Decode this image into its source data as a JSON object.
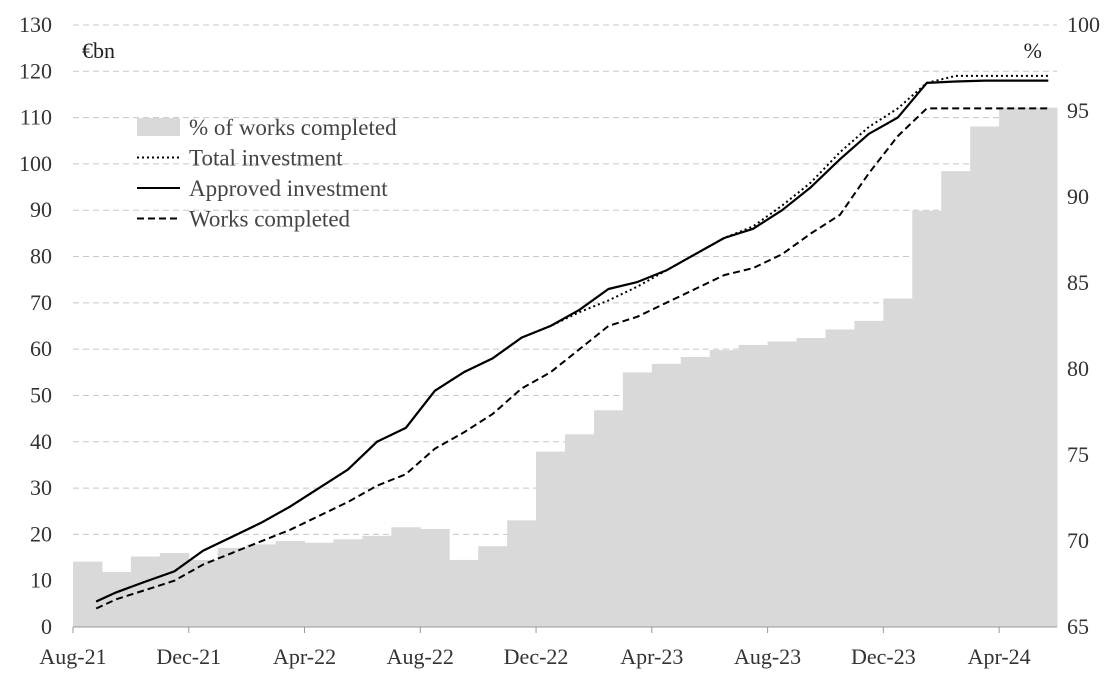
{
  "chart_data": {
    "type": "bar+line",
    "left_axis": {
      "unit_label": "€bn",
      "ylim": [
        0,
        130
      ],
      "ticks": [
        0,
        10,
        20,
        30,
        40,
        50,
        60,
        70,
        80,
        90,
        100,
        110,
        120,
        130
      ],
      "tick_labels": [
        "0",
        "10",
        "20",
        "30",
        "40",
        "50",
        "60",
        "70",
        "80",
        "90",
        "100",
        "110",
        "120",
        "130"
      ]
    },
    "right_axis": {
      "unit_label": "%",
      "ylim": [
        65,
        100
      ],
      "ticks": [
        65,
        70,
        75,
        80,
        85,
        90,
        95,
        100
      ],
      "tick_labels": [
        "65",
        "70",
        "75",
        "80",
        "85",
        "90",
        "95",
        "100"
      ]
    },
    "x_tick_labels": [
      "Aug-21",
      "Dec-21",
      "Apr-22",
      "Aug-22",
      "Dec-22",
      "Apr-23",
      "Aug-23",
      "Dec-23",
      "Apr-24"
    ],
    "x_tick_index": [
      0,
      4,
      8,
      12,
      16,
      20,
      24,
      28,
      32
    ],
    "months": [
      "Aug-21",
      "Sep-21",
      "Oct-21",
      "Nov-21",
      "Dec-21",
      "Jan-22",
      "Feb-22",
      "Mar-22",
      "Apr-22",
      "May-22",
      "Jun-22",
      "Jul-22",
      "Aug-22",
      "Sep-22",
      "Oct-22",
      "Nov-22",
      "Dec-22",
      "Jan-23",
      "Feb-23",
      "Mar-23",
      "Apr-23",
      "May-23",
      "Jun-23",
      "Jul-23",
      "Aug-23",
      "Sep-23",
      "Oct-23",
      "Nov-23",
      "Dec-23",
      "Jan-24",
      "Feb-24",
      "Mar-24",
      "Apr-24",
      "May-24"
    ],
    "grid": "horizontal dashed",
    "legend_position": "top-left",
    "legend": [
      {
        "label": "% of works completed",
        "style": "bar",
        "color": "#d9d9d9"
      },
      {
        "label": "Total investment",
        "style": "dotted",
        "color": "#000000"
      },
      {
        "label": "Approved investment",
        "style": "solid",
        "color": "#000000"
      },
      {
        "label": "Works completed",
        "style": "dashed",
        "color": "#000000"
      }
    ],
    "bar_series": {
      "name": "% of works completed",
      "axis": "right",
      "color": "#d9d9d9",
      "values": [
        68.8,
        68.2,
        69.1,
        69.3,
        68.9,
        69.6,
        69.8,
        70.0,
        69.9,
        70.1,
        70.3,
        70.8,
        70.7,
        68.9,
        69.7,
        71.2,
        75.2,
        76.2,
        77.6,
        79.8,
        80.3,
        80.7,
        81.1,
        81.4,
        81.6,
        81.8,
        82.3,
        82.8,
        84.1,
        89.2,
        91.5,
        94.1,
        95.2,
        95.2
      ]
    },
    "line_series": [
      {
        "name": "Total investment",
        "axis": "left",
        "style": "dotted",
        "x": [
          0.3,
          1,
          2,
          3,
          4,
          5,
          6,
          7,
          8,
          9,
          10,
          11,
          12,
          13,
          14,
          15,
          16,
          17,
          18,
          19,
          20,
          21,
          22,
          23,
          24,
          25,
          26,
          27,
          28,
          29,
          30,
          31,
          32,
          33.2
        ],
        "values": [
          5.5,
          7.5,
          9.8,
          12,
          16.5,
          19.5,
          22.5,
          26,
          30,
          34,
          40,
          43,
          51,
          55,
          58,
          62.5,
          65,
          68,
          70.5,
          73.5,
          77,
          80.5,
          84,
          86.5,
          91,
          96,
          102.5,
          108,
          112,
          117.5,
          119,
          119,
          119,
          119
        ]
      },
      {
        "name": "Approved investment",
        "axis": "left",
        "style": "solid",
        "x": [
          0.3,
          1,
          2,
          3,
          4,
          5,
          6,
          7,
          8,
          9,
          10,
          11,
          12,
          13,
          14,
          15,
          16,
          17,
          18,
          19,
          20,
          21,
          22,
          23,
          24,
          25,
          26,
          27,
          28,
          29,
          30,
          31,
          32,
          33.2
        ],
        "values": [
          5.5,
          7.5,
          9.8,
          12,
          16.5,
          19.5,
          22.5,
          26,
          30,
          34,
          40,
          43,
          51,
          55,
          58,
          62.5,
          65,
          68.5,
          73,
          74.5,
          77,
          80.5,
          84,
          86,
          90,
          95,
          101,
          106.5,
          110,
          117.5,
          117.8,
          118,
          118,
          118
        ]
      },
      {
        "name": "Works completed",
        "axis": "left",
        "style": "dashed",
        "x": [
          0.3,
          1,
          2,
          3,
          4,
          5,
          6,
          7,
          8,
          9,
          10,
          11,
          12,
          13,
          14,
          15,
          16,
          17,
          18,
          19,
          20,
          21,
          22,
          23,
          24,
          25,
          26,
          27,
          28,
          29,
          30,
          31,
          32,
          33.2
        ],
        "values": [
          4,
          6,
          8,
          10,
          13.5,
          16,
          18.5,
          21,
          24,
          27,
          30.5,
          33,
          38.5,
          42,
          46,
          51.5,
          55,
          60,
          65,
          67,
          70,
          73,
          76,
          77.5,
          80.5,
          85,
          89,
          98,
          106,
          112,
          112,
          112,
          112,
          112
        ]
      }
    ]
  }
}
